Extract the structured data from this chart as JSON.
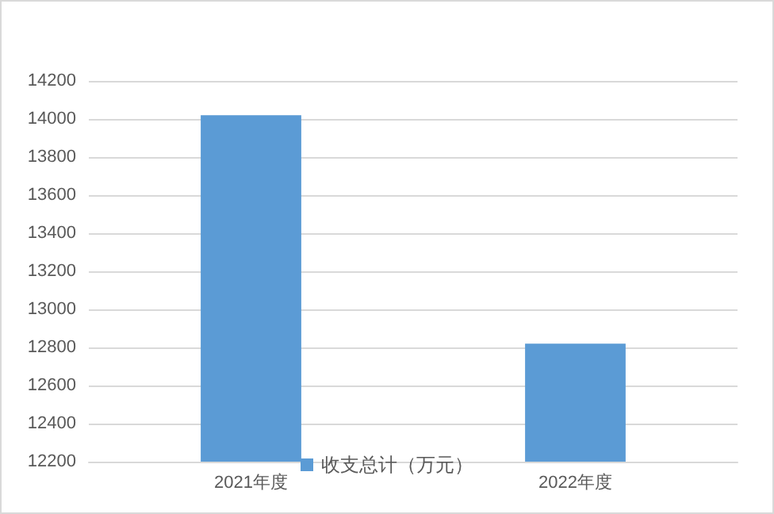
{
  "chart_data": {
    "type": "bar",
    "categories": [
      "2021年度",
      "2022年度"
    ],
    "series": [
      {
        "name": "收支总计（万元）",
        "color": "#5b9bd5",
        "values": [
          14020,
          12820
        ]
      }
    ],
    "ylim": [
      12200,
      14200
    ],
    "yticks": [
      12200,
      12400,
      12600,
      12800,
      13000,
      13200,
      13400,
      13600,
      13800,
      14000,
      14200
    ],
    "grid": "y",
    "legend": "bottom"
  }
}
